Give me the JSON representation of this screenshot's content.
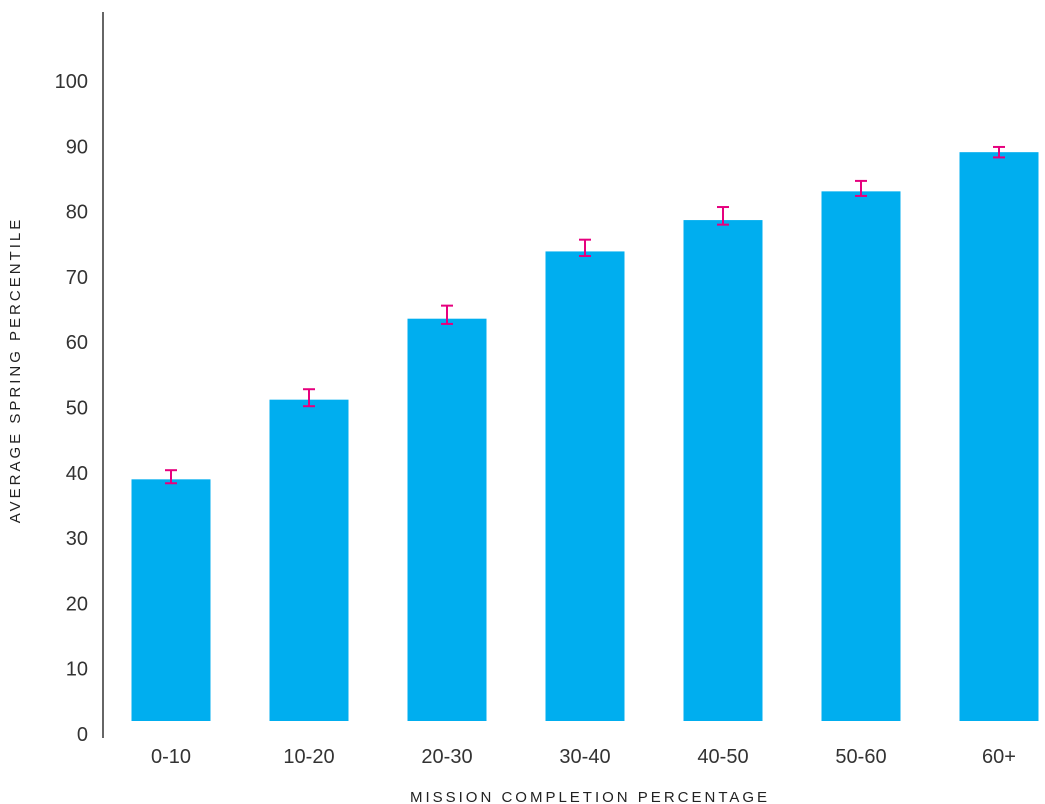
{
  "chart_data": {
    "type": "bar",
    "title": "",
    "xlabel": "MISSION COMPLETION PERCENTAGE",
    "ylabel": "AVERAGE SPRING PERCENTILE",
    "categories": [
      "0-10",
      "10-20",
      "20-30",
      "30-40",
      "40-50",
      "50-60",
      "60+"
    ],
    "values": [
      39,
      51.2,
      63.6,
      73.9,
      78.7,
      83.1,
      89.1
    ],
    "error_low": [
      38.4,
      50.2,
      62.8,
      73.2,
      78.0,
      82.4,
      88.3
    ],
    "error_high": [
      40.4,
      52.8,
      65.6,
      75.7,
      80.7,
      84.7,
      89.9
    ],
    "ylim": [
      0,
      110
    ],
    "yticks": [
      0,
      10,
      20,
      30,
      40,
      50,
      60,
      70,
      80,
      90,
      100
    ],
    "grid": false,
    "legend": "none",
    "colors": {
      "bar": "#00AEEF",
      "error_bar": "#E6007E",
      "axis": "#333333"
    }
  }
}
